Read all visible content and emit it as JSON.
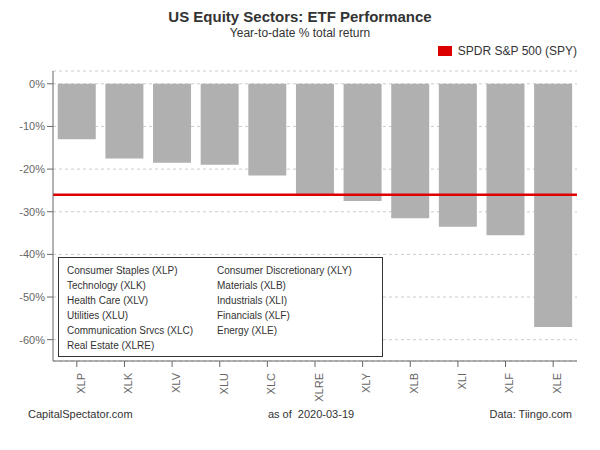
{
  "chart_data": {
    "type": "bar",
    "title": "US Equity Sectors: ETF Performance",
    "subtitle": "Year-to-date % total return",
    "categories": [
      "XLP",
      "XLK",
      "XLV",
      "XLU",
      "XLC",
      "XLRE",
      "XLY",
      "XLB",
      "XLI",
      "XLF",
      "XLE"
    ],
    "values": [
      -13.0,
      -17.5,
      -18.5,
      -19.0,
      -21.5,
      -26.0,
      -27.5,
      -31.5,
      -33.5,
      -35.5,
      -57.0
    ],
    "color": "#b0b0b0",
    "ylim": [
      -65,
      3
    ],
    "yticks": [
      {
        "value": 0,
        "label": "0%"
      },
      {
        "value": -10,
        "label": "-10%"
      },
      {
        "value": -20,
        "label": "-20%"
      },
      {
        "value": -30,
        "label": "-30%"
      },
      {
        "value": -40,
        "label": "-40%"
      },
      {
        "value": -50,
        "label": "-50%"
      },
      {
        "value": -60,
        "label": "-60%"
      }
    ],
    "grid": true,
    "legend": "upper right",
    "hline": {
      "name": "SPDR S&P 500 (SPY)",
      "value": -26.0,
      "color": "#dd0000"
    },
    "annotations": {
      "legend_left": [
        "Consumer Staples (XLP)",
        "Technology (XLK)",
        "Health Care (XLV)",
        "Utilities (XLU)",
        "Communication Srvcs (XLC)",
        "Real Estate (XLRE)"
      ],
      "legend_right": [
        "Consumer Discretionary (XLY)",
        "Materials (XLB)",
        "Industrials (XLI)",
        "Financials (XLF)",
        "Energy (XLE)"
      ],
      "footer": [
        "CapitalSpectator.com",
        "as of  2020-03-19",
        "Data: Tiingo.com"
      ]
    }
  }
}
